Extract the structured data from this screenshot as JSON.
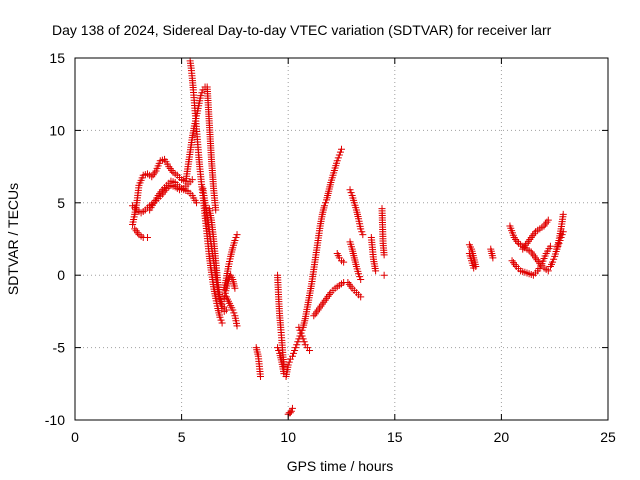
{
  "chart_data": {
    "type": "scatter",
    "title": "Day 138 of 2024, Sidereal Day-to-day VTEC variation (SDTVAR) for receiver larr",
    "xlabel": "GPS time / hours",
    "ylabel": "SDTVAR / TECUs",
    "xlim": [
      0,
      25
    ],
    "ylim": [
      -10,
      15
    ],
    "xticks": [
      0,
      5,
      10,
      15,
      20,
      25
    ],
    "yticks": [
      -10,
      -5,
      0,
      5,
      10,
      15
    ],
    "xtick_labels": [
      "0",
      "5",
      "10",
      "15",
      "20",
      "25"
    ],
    "ytick_labels": [
      "-10",
      "-5",
      "0",
      "5",
      "10",
      "15"
    ],
    "grid": true,
    "marker": "+",
    "color": "#e00000",
    "series": [
      {
        "name": "SDTVAR",
        "segments": [
          {
            "x": [
              2.7,
              2.8,
              2.9,
              3.0,
              3.2,
              3.4,
              3.6,
              3.8,
              4.0,
              4.2,
              4.4,
              4.6,
              4.8,
              5.0,
              5.2
            ],
            "y": [
              3.5,
              4.2,
              5.0,
              6.2,
              6.9,
              7.0,
              6.8,
              7.2,
              7.9,
              8.0,
              7.5,
              7.1,
              6.9,
              6.6,
              6.5
            ]
          },
          {
            "x": [
              2.7,
              2.9,
              3.1,
              3.3,
              3.5,
              3.7,
              3.9,
              4.1,
              4.3,
              4.5,
              4.7,
              4.9,
              5.1,
              5.3,
              5.5
            ],
            "y": [
              4.8,
              4.5,
              4.3,
              4.5,
              4.8,
              5.0,
              5.3,
              5.6,
              6.0,
              6.2,
              6.1,
              5.9,
              6.0,
              6.3,
              6.6
            ]
          },
          {
            "x": [
              2.8,
              3.0,
              3.2,
              3.4
            ],
            "y": [
              3.2,
              2.8,
              2.6,
              2.6
            ]
          },
          {
            "x": [
              3.5,
              3.7,
              3.9,
              4.1,
              4.3,
              4.5,
              4.7,
              4.9,
              5.1,
              5.3,
              5.5,
              5.7
            ],
            "y": [
              4.5,
              5.0,
              5.5,
              5.9,
              6.2,
              6.5,
              6.4,
              6.1,
              5.9,
              5.8,
              5.5,
              5.0
            ]
          },
          {
            "x": [
              5.4,
              5.45,
              5.5,
              5.55,
              5.6,
              5.65,
              5.7,
              5.75,
              5.8,
              5.85,
              5.9,
              5.95,
              6.0,
              6.05,
              6.1,
              6.15,
              6.2,
              6.25,
              6.3,
              6.4,
              6.5,
              6.6,
              6.7,
              6.8,
              6.9
            ],
            "y": [
              14.8,
              14.3,
              13.6,
              12.8,
              11.9,
              11.0,
              10.1,
              9.2,
              8.3,
              7.5,
              6.8,
              6.1,
              5.5,
              4.8,
              4.1,
              3.4,
              2.7,
              2.0,
              1.3,
              0.2,
              -0.8,
              -1.6,
              -2.3,
              -2.9,
              -3.3
            ]
          },
          {
            "x": [
              5.2,
              5.3,
              5.4,
              5.5,
              5.6,
              5.7,
              5.8,
              5.9,
              6.0,
              6.1,
              6.2,
              6.3,
              6.4,
              6.5,
              6.6
            ],
            "y": [
              6.5,
              7.5,
              8.5,
              9.5,
              10.3,
              11.0,
              11.7,
              12.4,
              12.8,
              13.0,
              13.0,
              10.5,
              8.0,
              6.0,
              4.5
            ]
          },
          {
            "x": [
              6.0,
              6.1,
              6.2,
              6.3,
              6.4,
              6.5,
              6.6,
              6.7,
              6.8,
              6.9,
              7.0
            ],
            "y": [
              6.0,
              5.0,
              4.0,
              3.0,
              2.0,
              1.0,
              0.0,
              -1.0,
              -1.8,
              -2.3,
              -2.5
            ]
          },
          {
            "x": [
              6.3,
              6.4,
              6.5,
              6.6,
              6.7,
              6.8,
              6.9,
              7.0,
              7.1
            ],
            "y": [
              4.6,
              3.8,
              2.5,
              1.0,
              -0.5,
              -1.5,
              -2.0,
              -2.2,
              -2.4
            ]
          },
          {
            "x": [
              7.0,
              7.1,
              7.2,
              7.3,
              7.4,
              7.5,
              7.6
            ],
            "y": [
              -1.0,
              -0.2,
              0.6,
              1.3,
              1.9,
              2.4,
              2.8
            ]
          },
          {
            "x": [
              7.1,
              7.2,
              7.3,
              7.4,
              7.5,
              7.6
            ],
            "y": [
              -1.5,
              -1.8,
              -2.1,
              -2.4,
              -2.8,
              -3.5
            ]
          },
          {
            "x": [
              7.0,
              7.1,
              7.2,
              7.3,
              7.4,
              7.5
            ],
            "y": [
              -1.6,
              -0.9,
              -0.3,
              0.0,
              -0.3,
              -0.9
            ]
          },
          {
            "x": [
              8.5,
              8.6,
              8.65,
              8.7
            ],
            "y": [
              -5.0,
              -5.6,
              -6.3,
              -7.0
            ]
          },
          {
            "x": [
              9.5,
              9.55,
              9.6,
              9.65,
              9.7,
              9.75,
              9.8
            ],
            "y": [
              0.0,
              -1.5,
              -2.8,
              -3.6,
              -4.5,
              -5.5,
              -6.3
            ]
          },
          {
            "x": [
              9.5,
              9.6,
              9.7,
              9.8,
              9.9,
              10.0,
              10.1,
              10.2,
              10.3,
              10.4,
              10.5,
              10.6,
              10.7,
              10.8,
              10.9,
              11.0,
              11.1,
              11.2,
              11.3,
              11.4,
              11.5,
              11.6,
              11.7,
              11.8,
              11.9,
              12.0,
              12.1,
              12.2,
              12.3,
              12.4,
              12.5
            ],
            "y": [
              -5.0,
              -5.4,
              -6.0,
              -6.8,
              -7.0,
              -6.2,
              -5.8,
              -5.6,
              -5.2,
              -4.8,
              -4.4,
              -4.0,
              -3.6,
              -3.0,
              -2.2,
              -1.4,
              -0.6,
              0.4,
              1.4,
              2.4,
              3.4,
              4.2,
              4.8,
              5.2,
              5.8,
              6.4,
              6.9,
              7.4,
              7.9,
              8.3,
              8.7
            ]
          },
          {
            "x": [
              10.0,
              10.05,
              10.1,
              10.15,
              10.2
            ],
            "y": [
              -9.6,
              -9.5,
              -9.5,
              -9.4,
              -9.2
            ]
          },
          {
            "x": [
              10.5,
              10.6,
              10.7,
              10.8,
              10.9,
              11.0
            ],
            "y": [
              -3.6,
              -4.0,
              -4.4,
              -4.8,
              -5.0,
              -5.2
            ]
          },
          {
            "x": [
              11.2,
              11.4,
              11.6,
              11.8,
              12.0,
              12.2,
              12.4,
              12.6
            ],
            "y": [
              -2.8,
              -2.4,
              -2.0,
              -1.6,
              -1.2,
              -0.9,
              -0.7,
              -0.5
            ]
          },
          {
            "x": [
              12.3,
              12.4,
              12.5,
              12.6
            ],
            "y": [
              1.5,
              1.2,
              1.0,
              0.9
            ]
          },
          {
            "x": [
              12.9,
              13.0,
              13.1,
              13.2,
              13.3,
              13.4,
              13.5
            ],
            "y": [
              5.9,
              5.5,
              5.0,
              4.5,
              3.9,
              3.2,
              2.8
            ]
          },
          {
            "x": [
              12.9,
              13.0,
              13.1,
              13.2,
              13.3,
              13.4
            ],
            "y": [
              2.3,
              1.8,
              1.2,
              0.6,
              0.1,
              -0.3
            ]
          },
          {
            "x": [
              12.8,
              13.0,
              13.2,
              13.4
            ],
            "y": [
              -0.5,
              -0.9,
              -1.2,
              -1.5
            ]
          },
          {
            "x": [
              13.9,
              14.0,
              14.1
            ],
            "y": [
              2.6,
              1.1,
              0.3
            ]
          },
          {
            "x": [
              14.4,
              14.45,
              14.5
            ],
            "y": [
              4.6,
              2.2,
              1.4
            ]
          },
          {
            "x": [
              14.5
            ],
            "y": [
              0.0
            ]
          },
          {
            "x": [
              18.5,
              18.6,
              18.7,
              18.8
            ],
            "y": [
              2.1,
              1.8,
              1.2,
              0.6
            ]
          },
          {
            "x": [
              18.5,
              18.6,
              18.7
            ],
            "y": [
              1.5,
              1.0,
              0.5
            ]
          },
          {
            "x": [
              19.5,
              19.6
            ],
            "y": [
              1.8,
              1.2
            ]
          },
          {
            "x": [
              20.4,
              20.6,
              20.8,
              21.0,
              21.2,
              21.4,
              21.6,
              21.8,
              22.0,
              22.2
            ],
            "y": [
              3.4,
              2.6,
              2.2,
              2.0,
              1.8,
              1.6,
              1.2,
              0.8,
              0.5,
              0.3
            ]
          },
          {
            "x": [
              20.5,
              20.7,
              20.9,
              21.1,
              21.3,
              21.5,
              21.7,
              21.9,
              22.1,
              22.3
            ],
            "y": [
              1.0,
              0.6,
              0.3,
              0.2,
              0.1,
              0.0,
              0.3,
              0.8,
              1.5,
              2.0
            ]
          },
          {
            "x": [
              21.0,
              21.2,
              21.4,
              21.6,
              21.8,
              22.0,
              22.2
            ],
            "y": [
              1.8,
              2.2,
              2.6,
              3.0,
              3.2,
              3.4,
              3.8
            ]
          },
          {
            "x": [
              22.3,
              22.4,
              22.5,
              22.6,
              22.7,
              22.8,
              22.9
            ],
            "y": [
              0.6,
              0.9,
              1.3,
              1.8,
              2.4,
              3.2,
              4.2
            ]
          },
          {
            "x": [
              22.6,
              22.7,
              22.8,
              22.9
            ],
            "y": [
              1.8,
              2.2,
              2.6,
              3.0
            ]
          }
        ]
      }
    ]
  }
}
